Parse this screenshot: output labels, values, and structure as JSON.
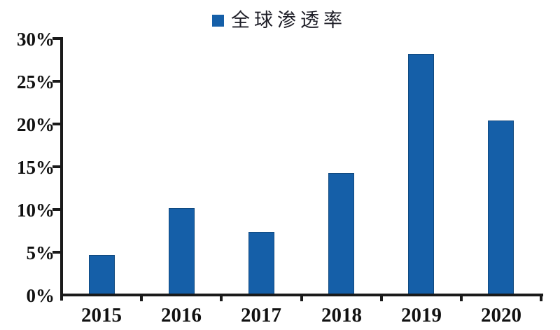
{
  "legend": {
    "label": "全球渗透率",
    "marker_color": "#155FA8"
  },
  "chart_data": {
    "type": "bar",
    "title": "",
    "xlabel": "",
    "ylabel": "",
    "categories": [
      "2015",
      "2016",
      "2017",
      "2018",
      "2019",
      "2020"
    ],
    "series": [
      {
        "name": "全球渗透率",
        "values": [
          4.7,
          10.2,
          7.4,
          14.3,
          28.2,
          20.4
        ]
      }
    ],
    "ylim": [
      0,
      30
    ],
    "ytick_step": 5,
    "ytick_labels": [
      "0%",
      "5%",
      "10%",
      "15%",
      "20%",
      "25%",
      "30%"
    ],
    "bar_color": "#155FA8",
    "axis_color": "#1a1a1a",
    "grid": false,
    "legend_position": "top-center"
  }
}
